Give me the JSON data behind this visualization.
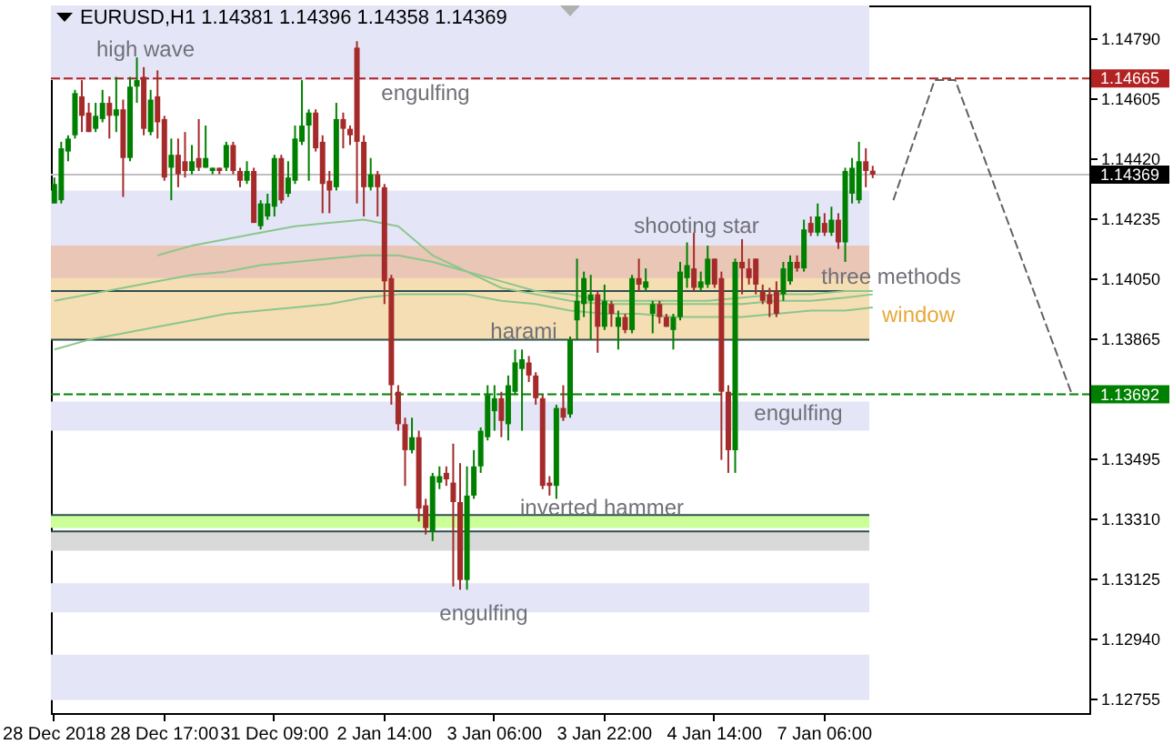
{
  "chart_data": {
    "type": "candlestick",
    "title": "EURUSD,H1  1.14381 1.14396 1.14358 1.14369",
    "categories": [
      "28 Dec 2018",
      null,
      null,
      null,
      null,
      null,
      null,
      null,
      null,
      null,
      null,
      null,
      null,
      null,
      null,
      null,
      "28 Dec 17:00",
      null,
      null,
      null,
      null,
      null,
      null,
      null,
      null,
      null,
      null,
      null,
      null,
      null,
      null,
      null,
      "31 Dec 09:00",
      null,
      null,
      null,
      null,
      null,
      null,
      null,
      null,
      null,
      null,
      null,
      null,
      null,
      null,
      null,
      "2 Jan 14:00",
      null,
      null,
      null,
      null,
      null,
      null,
      null,
      null,
      null,
      null,
      null,
      null,
      null,
      null,
      null,
      "3 Jan 06:00",
      null,
      null,
      null,
      null,
      null,
      null,
      null,
      null,
      null,
      null,
      null,
      null,
      null,
      null,
      null,
      "3 Jan 22:00",
      null,
      null,
      null,
      null,
      null,
      null,
      null,
      null,
      null,
      null,
      null,
      null,
      null,
      null,
      null,
      "4 Jan 14:00",
      null,
      null,
      null,
      null,
      null,
      null,
      null,
      null,
      null,
      null,
      null,
      null,
      null,
      null,
      null,
      "7 Jan 06:00",
      null,
      null,
      null,
      null,
      null,
      null,
      null,
      null,
      null,
      null,
      null,
      null,
      null,
      null,
      null,
      null,
      null,
      null,
      null,
      null,
      null,
      null,
      null,
      null,
      null,
      null,
      null,
      null,
      null,
      null,
      null,
      null,
      null,
      null,
      null,
      null,
      null,
      null
    ],
    "ohlc": [
      [
        1.1428,
        1.1436,
        1.1428,
        1.1434
      ],
      [
        1.1429,
        1.1447,
        1.1428,
        1.1445
      ],
      [
        1.1444,
        1.1449,
        1.1441,
        1.1448
      ],
      [
        1.1449,
        1.1463,
        1.1448,
        1.1462
      ],
      [
        1.1461,
        1.1466,
        1.145,
        1.1455
      ],
      [
        1.1456,
        1.1459,
        1.145,
        1.145
      ],
      [
        1.1451,
        1.1459,
        1.145,
        1.1455
      ],
      [
        1.1454,
        1.1463,
        1.1453,
        1.1459
      ],
      [
        1.1459,
        1.1461,
        1.1448,
        1.1455
      ],
      [
        1.1455,
        1.1467,
        1.145,
        1.1457
      ],
      [
        1.1457,
        1.146,
        1.143,
        1.1442
      ],
      [
        1.1442,
        1.1467,
        1.1441,
        1.1464
      ],
      [
        1.1464,
        1.1473,
        1.1459,
        1.1466
      ],
      [
        1.1467,
        1.147,
        1.1449,
        1.1451
      ],
      [
        1.145,
        1.1463,
        1.1449,
        1.146
      ],
      [
        1.1461,
        1.1469,
        1.1448,
        1.1453
      ],
      [
        1.1454,
        1.1455,
        1.1435,
        1.1436
      ],
      [
        1.1439,
        1.1448,
        1.1429,
        1.1443
      ],
      [
        1.1443,
        1.1448,
        1.1433,
        1.1437
      ],
      [
        1.1441,
        1.145,
        1.1436,
        1.1438
      ],
      [
        1.1438,
        1.1446,
        1.1437,
        1.1441
      ],
      [
        1.1442,
        1.1454,
        1.1438,
        1.1439
      ],
      [
        1.1439,
        1.1452,
        1.1439,
        1.1442
      ],
      [
        1.1438,
        1.1439,
        1.1437,
        1.1439
      ],
      [
        1.1439,
        1.1439,
        1.1437,
        1.1438
      ],
      [
        1.1439,
        1.1447,
        1.1438,
        1.1446
      ],
      [
        1.1446,
        1.1447,
        1.1437,
        1.1438
      ],
      [
        1.1438,
        1.1439,
        1.1433,
        1.1435
      ],
      [
        1.1435,
        1.1441,
        1.1434,
        1.1438
      ],
      [
        1.1438,
        1.1439,
        1.1422,
        1.1422
      ],
      [
        1.1421,
        1.1429,
        1.142,
        1.1428
      ],
      [
        1.1424,
        1.1431,
        1.1423,
        1.1428
      ],
      [
        1.1427,
        1.1443,
        1.1424,
        1.1442
      ],
      [
        1.1442,
        1.1443,
        1.1428,
        1.1429
      ],
      [
        1.1431,
        1.1441,
        1.143,
        1.1436
      ],
      [
        1.1435,
        1.1452,
        1.1434,
        1.1448
      ],
      [
        1.1447,
        1.1466,
        1.1446,
        1.1452
      ],
      [
        1.1452,
        1.1457,
        1.1435,
        1.1456
      ],
      [
        1.1456,
        1.1457,
        1.1444,
        1.1445
      ],
      [
        1.1447,
        1.1449,
        1.1425,
        1.1434
      ],
      [
        1.1435,
        1.1438,
        1.1425,
        1.1432
      ],
      [
        1.1433,
        1.1459,
        1.1432,
        1.1454
      ],
      [
        1.1454,
        1.1456,
        1.1445,
        1.1451
      ],
      [
        1.1451,
        1.1452,
        1.1446,
        1.1449
      ],
      [
        1.1476,
        1.1478,
        1.1428,
        1.1447
      ],
      [
        1.1447,
        1.1449,
        1.1424,
        1.1433
      ],
      [
        1.1433,
        1.1442,
        1.1432,
        1.1437
      ],
      [
        1.1437,
        1.1438,
        1.1424,
        1.1433
      ],
      [
        1.1433,
        1.1434,
        1.1397,
        1.1404
      ],
      [
        1.1405,
        1.1406,
        1.1366,
        1.1372
      ],
      [
        1.137,
        1.1372,
        1.1358,
        1.136
      ],
      [
        1.136,
        1.1362,
        1.1341,
        1.1352
      ],
      [
        1.1352,
        1.1362,
        1.1351,
        1.1356
      ],
      [
        1.1356,
        1.1358,
        1.133,
        1.1334
      ],
      [
        1.1335,
        1.1337,
        1.1326,
        1.1328
      ],
      [
        1.1327,
        1.1345,
        1.1324,
        1.1344
      ],
      [
        1.1342,
        1.1347,
        1.134,
        1.1344
      ],
      [
        1.1345,
        1.1347,
        1.1341,
        1.1343
      ],
      [
        1.1342,
        1.1354,
        1.131,
        1.1336
      ],
      [
        1.1336,
        1.1348,
        1.1309,
        1.1312
      ],
      [
        1.1312,
        1.1347,
        1.1309,
        1.1338
      ],
      [
        1.1338,
        1.1352,
        1.1337,
        1.1347
      ],
      [
        1.1347,
        1.1359,
        1.1345,
        1.1358
      ],
      [
        1.1356,
        1.1372,
        1.1355,
        1.1369
      ],
      [
        1.1364,
        1.1372,
        1.1358,
        1.1368
      ],
      [
        1.1368,
        1.137,
        1.1356,
        1.1361
      ],
      [
        1.136,
        1.1375,
        1.1355,
        1.1372
      ],
      [
        1.137,
        1.1383,
        1.1369,
        1.1379
      ],
      [
        1.1377,
        1.1383,
        1.1358,
        1.138
      ],
      [
        1.1379,
        1.1381,
        1.1373,
        1.1375
      ],
      [
        1.1375,
        1.1376,
        1.1366,
        1.1368
      ],
      [
        1.1368,
        1.1369,
        1.134,
        1.1341
      ],
      [
        1.1342,
        1.1344,
        1.1338,
        1.1341
      ],
      [
        1.1341,
        1.1366,
        1.1337,
        1.1365
      ],
      [
        1.1365,
        1.1372,
        1.1361,
        1.1362
      ],
      [
        1.1363,
        1.1387,
        1.1362,
        1.1386
      ],
      [
        1.1392,
        1.1411,
        1.1386,
        1.1398
      ],
      [
        1.1397,
        1.1407,
        1.1393,
        1.1405
      ],
      [
        1.1398,
        1.1406,
        1.1386,
        1.14
      ],
      [
        1.14,
        1.1401,
        1.1382,
        1.139
      ],
      [
        1.139,
        1.1403,
        1.1389,
        1.1398
      ],
      [
        1.1397,
        1.1398,
        1.139,
        1.1394
      ],
      [
        1.139,
        1.1395,
        1.1383,
        1.1393
      ],
      [
        1.1393,
        1.1394,
        1.1388,
        1.1389
      ],
      [
        1.1389,
        1.1406,
        1.1388,
        1.1405
      ],
      [
        1.1405,
        1.1411,
        1.1401,
        1.1403
      ],
      [
        1.1402,
        1.1408,
        1.1401,
        1.1404
      ],
      [
        1.1394,
        1.1398,
        1.1388,
        1.1397
      ],
      [
        1.1397,
        1.1398,
        1.1391,
        1.1393
      ],
      [
        1.1393,
        1.1394,
        1.139,
        1.139
      ],
      [
        1.1389,
        1.1394,
        1.1383,
        1.1393
      ],
      [
        1.1393,
        1.141,
        1.1392,
        1.1407
      ],
      [
        1.1405,
        1.1416,
        1.1402,
        1.1409
      ],
      [
        1.1408,
        1.1419,
        1.1401,
        1.1402
      ],
      [
        1.1402,
        1.1407,
        1.1401,
        1.1404
      ],
      [
        1.1403,
        1.1415,
        1.1402,
        1.1411
      ],
      [
        1.1411,
        1.1411,
        1.1402,
        1.1403
      ],
      [
        1.1405,
        1.1407,
        1.1349,
        1.137
      ],
      [
        1.137,
        1.1372,
        1.1345,
        1.1352
      ],
      [
        1.1352,
        1.1411,
        1.1345,
        1.141
      ],
      [
        1.141,
        1.1417,
        1.14,
        1.1408
      ],
      [
        1.1408,
        1.1411,
        1.1403,
        1.1405
      ],
      [
        1.1411,
        1.1411,
        1.14,
        1.1403
      ],
      [
        1.1401,
        1.1403,
        1.1397,
        1.1398
      ],
      [
        1.14,
        1.1402,
        1.1393,
        1.1397
      ],
      [
        1.1401,
        1.1404,
        1.1393,
        1.1394
      ],
      [
        1.14,
        1.141,
        1.1398,
        1.1408
      ],
      [
        1.1404,
        1.1412,
        1.1403,
        1.141
      ],
      [
        1.141,
        1.1412,
        1.1407,
        1.1408
      ],
      [
        1.1408,
        1.1423,
        1.1407,
        1.142
      ],
      [
        1.1422,
        1.1424,
        1.1418,
        1.1419
      ],
      [
        1.1419,
        1.1428,
        1.1418,
        1.1424
      ],
      [
        1.1422,
        1.1425,
        1.1418,
        1.1419
      ],
      [
        1.1419,
        1.1427,
        1.1418,
        1.1423
      ],
      [
        1.1423,
        1.1425,
        1.1414,
        1.1416
      ],
      [
        1.1416,
        1.1439,
        1.141,
        1.1438
      ],
      [
        1.1431,
        1.1442,
        1.1428,
        1.1439
      ],
      [
        1.1429,
        1.1447,
        1.1428,
        1.1441
      ],
      [
        1.1441,
        1.1445,
        1.1433,
        1.1438
      ],
      [
        1.14381,
        1.14396,
        1.14358,
        1.14369
      ],
      null,
      null,
      null,
      null,
      null,
      null,
      null,
      null,
      null,
      null,
      null,
      null,
      null,
      null,
      null,
      null,
      null,
      null,
      null,
      null,
      null,
      null,
      null,
      null,
      null,
      null,
      null,
      null,
      null,
      null,
      null
    ],
    "colors": [
      "#008000",
      "#008000",
      "#008000",
      "#008000",
      "#a52a2a",
      "#a52a2a",
      "#008000",
      "#008000",
      "#a52a2a",
      "#008000",
      "#a52a2a",
      "#008000",
      "#008000",
      "#a52a2a",
      "#008000",
      "#a52a2a",
      "#a52a2a",
      "#008000",
      "#a52a2a",
      "#a52a2a",
      "#008000",
      "#a52a2a",
      "#008000",
      "#008000",
      "#a52a2a",
      "#008000",
      "#a52a2a",
      "#a52a2a",
      "#008000",
      "#a52a2a",
      "#008000",
      "#008000",
      "#008000",
      "#a52a2a",
      "#008000",
      "#008000",
      "#008000",
      "#008000",
      "#a52a2a",
      "#a52a2a",
      "#a52a2a",
      "#008000",
      "#a52a2a",
      "#a52a2a",
      "#a52a2a",
      "#a52a2a",
      "#008000",
      "#a52a2a",
      "#a52a2a",
      "#a52a2a",
      "#a52a2a",
      "#a52a2a",
      "#008000",
      "#a52a2a",
      "#a52a2a",
      "#008000",
      "#008000",
      "#a52a2a",
      "#a52a2a",
      "#a52a2a",
      "#008000",
      "#008000",
      "#008000",
      "#008000",
      "#008000",
      "#a52a2a",
      "#008000",
      "#008000",
      "#008000",
      "#a52a2a",
      "#a52a2a",
      "#a52a2a",
      "#a52a2a",
      "#008000",
      "#a52a2a",
      "#008000",
      "#008000",
      "#008000",
      "#008000",
      "#a52a2a",
      "#008000",
      "#a52a2a",
      "#008000",
      "#a52a2a",
      "#008000",
      "#a52a2a",
      "#008000",
      "#008000",
      "#a52a2a",
      "#a52a2a",
      "#008000",
      "#008000",
      "#008000",
      "#a52a2a",
      "#008000",
      "#008000",
      "#a52a2a",
      "#a52a2a",
      "#a52a2a",
      "#008000",
      "#a52a2a",
      "#a52a2a",
      "#a52a2a",
      "#a52a2a",
      "#a52a2a",
      "#a52a2a",
      "#008000",
      "#008000",
      "#a52a2a",
      "#008000",
      "#a52a2a",
      "#008000",
      "#a52a2a",
      "#008000",
      "#a52a2a",
      "#008000",
      "#008000",
      "#008000",
      "#a52a2a",
      "#a52a2a",
      null,
      null,
      null,
      null,
      null,
      null,
      null,
      null,
      null,
      null,
      null,
      null,
      null,
      null,
      null,
      null,
      null,
      null,
      null,
      null,
      null,
      null,
      null,
      null,
      null,
      null,
      null,
      null,
      null,
      null,
      null
    ],
    "series": [
      {
        "type": "line",
        "color": "#8cc68c",
        "values": [
          null,
          null,
          null,
          null,
          null,
          null,
          null,
          null,
          null,
          null,
          null,
          null,
          null,
          null,
          null,
          1.1412,
          null,
          null,
          null,
          null,
          1.1415,
          null,
          null,
          null,
          null,
          1.1417,
          null,
          null,
          null,
          null,
          1.1419,
          null,
          null,
          null,
          null,
          1.1421,
          null,
          null,
          null,
          null,
          1.1422,
          null,
          null,
          null,
          null,
          1.1423,
          null,
          null,
          null,
          null,
          1.1421,
          null,
          null,
          null,
          null,
          1.1412,
          null,
          null,
          null,
          null,
          1.1407,
          null,
          null,
          null,
          null,
          1.1402,
          null,
          null,
          null,
          null,
          1.14,
          null,
          null,
          null,
          null,
          1.1398,
          null,
          null,
          null,
          null,
          1.1397,
          null,
          null,
          null,
          null,
          1.1397,
          null,
          null,
          null,
          null,
          1.1397,
          null,
          null,
          null,
          null,
          1.1397,
          null,
          null,
          null,
          null,
          1.1397,
          null,
          null,
          null,
          null,
          1.1398,
          null,
          null,
          null,
          null,
          1.1398,
          null,
          null,
          null,
          null,
          1.1399,
          null,
          null,
          null,
          1.14,
          null,
          null,
          null,
          null,
          null,
          null,
          null,
          null,
          null,
          null,
          null,
          null,
          null,
          null,
          null,
          null,
          null,
          null,
          null,
          null,
          null,
          null,
          null,
          null,
          null,
          null,
          null,
          null,
          null,
          null,
          null
        ]
      },
      {
        "type": "line",
        "color": "#8cc68c",
        "values": [
          1.1398,
          null,
          null,
          null,
          null,
          1.14,
          null,
          null,
          null,
          null,
          1.1402,
          null,
          null,
          null,
          null,
          1.1404,
          null,
          null,
          null,
          null,
          1.1406,
          null,
          null,
          null,
          null,
          1.1407,
          null,
          null,
          null,
          null,
          1.1409,
          null,
          null,
          null,
          null,
          1.141,
          null,
          null,
          null,
          null,
          1.1411,
          null,
          null,
          null,
          null,
          1.1412,
          null,
          null,
          null,
          null,
          1.1412,
          null,
          null,
          null,
          null,
          1.141,
          null,
          null,
          null,
          null,
          1.1407,
          null,
          null,
          null,
          null,
          1.1404,
          null,
          null,
          null,
          null,
          1.1401,
          null,
          null,
          null,
          null,
          1.14,
          null,
          null,
          null,
          null,
          1.1398,
          null,
          null,
          null,
          null,
          1.1398,
          null,
          null,
          null,
          null,
          1.1398,
          null,
          null,
          null,
          null,
          1.1398,
          null,
          null,
          null,
          null,
          1.1399,
          null,
          null,
          null,
          null,
          1.14,
          null,
          null,
          null,
          null,
          1.14,
          null,
          null,
          null,
          null,
          1.1401,
          null,
          null,
          null,
          1.1401,
          null,
          null,
          null,
          null,
          null,
          null,
          null,
          null,
          null,
          null,
          null,
          null,
          null,
          null,
          null,
          null,
          null,
          null,
          null,
          null,
          null,
          null,
          null,
          null,
          null,
          null,
          null,
          null,
          null,
          null,
          null
        ]
      },
      {
        "type": "line",
        "color": "#8cc68c",
        "values": [
          1.1383,
          null,
          null,
          null,
          null,
          1.1386,
          null,
          null,
          null,
          null,
          1.1388,
          null,
          null,
          null,
          null,
          1.139,
          null,
          null,
          null,
          null,
          1.1392,
          null,
          null,
          null,
          null,
          1.1394,
          null,
          null,
          null,
          null,
          1.1395,
          null,
          null,
          null,
          null,
          1.1396,
          null,
          null,
          null,
          null,
          1.1397,
          null,
          null,
          null,
          null,
          1.1399,
          null,
          null,
          null,
          null,
          1.14,
          null,
          null,
          null,
          null,
          1.14,
          null,
          null,
          null,
          null,
          1.14,
          null,
          null,
          null,
          null,
          1.1398,
          null,
          null,
          null,
          null,
          1.1397,
          null,
          null,
          null,
          null,
          1.1395,
          null,
          null,
          null,
          null,
          1.1394,
          null,
          null,
          null,
          null,
          1.1394,
          null,
          null,
          null,
          null,
          1.1393,
          null,
          null,
          null,
          null,
          1.1393,
          null,
          null,
          null,
          null,
          1.1393,
          null,
          null,
          null,
          null,
          1.1394,
          null,
          null,
          null,
          null,
          1.1395,
          null,
          null,
          null,
          null,
          1.1395,
          null,
          null,
          null,
          1.1396,
          null,
          null,
          null,
          null,
          null,
          null,
          null,
          null,
          null,
          null,
          null,
          null,
          null,
          null,
          null,
          null,
          null,
          null,
          null,
          null,
          null,
          null,
          null,
          null,
          null,
          null,
          null,
          null,
          null,
          null,
          null
        ]
      },
      {
        "type": "line",
        "color": "#606060",
        "line_style": "dashed",
        "values": [
          null,
          null,
          null,
          null,
          null,
          null,
          null,
          null,
          null,
          null,
          null,
          null,
          null,
          null,
          null,
          null,
          null,
          null,
          null,
          null,
          null,
          null,
          null,
          null,
          null,
          null,
          null,
          null,
          null,
          null,
          null,
          null,
          null,
          null,
          null,
          null,
          null,
          null,
          null,
          null,
          null,
          null,
          null,
          null,
          null,
          null,
          null,
          null,
          null,
          null,
          null,
          null,
          null,
          null,
          null,
          null,
          null,
          null,
          null,
          null,
          null,
          null,
          null,
          null,
          null,
          null,
          null,
          null,
          null,
          null,
          null,
          null,
          null,
          null,
          null,
          null,
          null,
          null,
          null,
          null,
          null,
          null,
          null,
          null,
          null,
          null,
          null,
          null,
          null,
          null,
          null,
          null,
          null,
          null,
          null,
          null,
          null,
          null,
          null,
          null,
          null,
          null,
          null,
          null,
          null,
          null,
          null,
          null,
          null,
          null,
          null,
          null,
          null,
          null,
          null,
          null,
          null,
          null,
          null,
          null,
          null,
          null,
          1.1429,
          null,
          null,
          null,
          null,
          null,
          1.1466,
          null,
          null,
          1.1466,
          null,
          null,
          null,
          null,
          null,
          null,
          null,
          null,
          null,
          null,
          null,
          null,
          null,
          null,
          null,
          null,
          1.1369,
          null,
          null
        ]
      }
    ],
    "ylim": [
      1.1271,
      1.1489
    ],
    "yticks": [
      {
        "value": 1.1479,
        "label": "1.14790"
      },
      1.14605,
      {
        "value": 1.1442,
        "label": "1.14420"
      },
      1.14235,
      {
        "value": 1.1405,
        "label": "1.14050"
      },
      1.13865,
      {
        "value": 1.1368,
        "label": null
      },
      1.13495,
      {
        "value": 1.1331,
        "label": "1.13310"
      },
      1.13125,
      {
        "value": 1.1294,
        "label": "1.12940"
      },
      1.12755
    ],
    "bands": [
      {
        "axis": "y",
        "from": 1.1466,
        "to": 1.1489,
        "color": "#e4e6f8"
      },
      {
        "axis": "y",
        "from": 1.1415,
        "to": 1.1432,
        "color": "#e4e6f8"
      },
      {
        "axis": "y",
        "from": 1.1386,
        "to": 1.1415,
        "color": "#f5deb3"
      },
      {
        "axis": "y",
        "from": 1.1405,
        "to": 1.1415,
        "color": "#e9c6b6"
      },
      {
        "axis": "y",
        "from": 1.1358,
        "to": 1.1367,
        "color": "#e4e6f8"
      },
      {
        "axis": "y",
        "from": 1.1328,
        "to": 1.1332,
        "color": "#ccff99"
      },
      {
        "axis": "y",
        "from": 1.1321,
        "to": 1.1327,
        "color": "#d9d9d9"
      },
      {
        "axis": "y",
        "from": 1.1302,
        "to": 1.1311,
        "color": "#e4e6f8"
      },
      {
        "axis": "y",
        "from": 1.1275,
        "to": 1.1289,
        "color": "#e4e6f8"
      }
    ],
    "ref_lines": [
      {
        "axis": "y",
        "value": 1.1401,
        "color": "#2f4f4f"
      },
      {
        "axis": "y",
        "value": 1.1386,
        "color": "#2f4f4f"
      },
      {
        "axis": "y",
        "value": 1.1332,
        "color": "#2f4f4f"
      },
      {
        "axis": "y",
        "value": 1.1327,
        "color": "#2f4f4f"
      },
      {
        "axis": "y",
        "value": 1.14369,
        "label": "1.14369",
        "color": "#c0c0c0",
        "line_style": "solid"
      },
      {
        "axis": "y",
        "value": 1.14665,
        "label": "1.14665",
        "color": "#b22222",
        "line_style": "dashed"
      },
      {
        "axis": "y",
        "value": 1.13692,
        "label": "1.13692",
        "color": "#008000",
        "line_style": "dashed"
      }
    ],
    "annotations": [
      "high wave",
      "engulfing",
      "shooting star",
      "three methods",
      "window",
      "harami",
      "inverted hammer",
      "engulfing",
      "engulfing"
    ]
  }
}
